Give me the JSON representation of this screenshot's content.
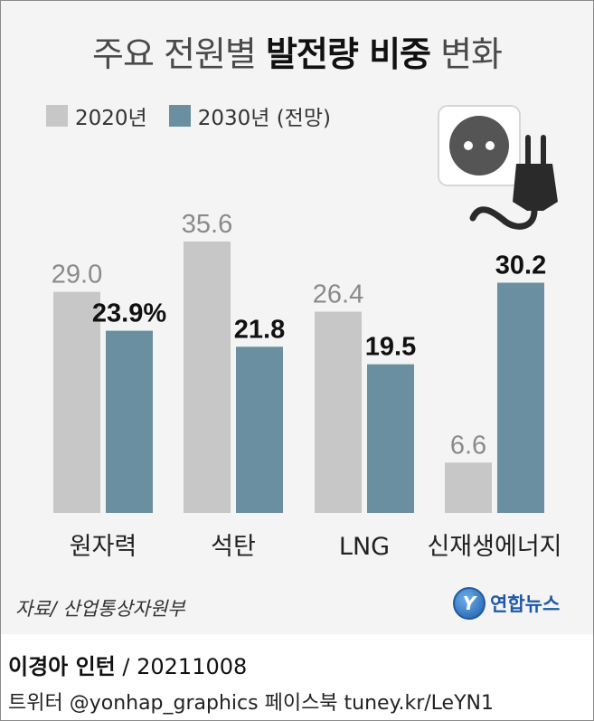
{
  "title": {
    "regular_a": "주요 전원별 ",
    "bold": "발전량 비중",
    "regular_b": " 변화"
  },
  "legend": [
    {
      "label": "2020년",
      "color": "#c7c7c7"
    },
    {
      "label": "2030년 (전망)",
      "color": "#6a8fa0"
    }
  ],
  "source": "자료/ 산업통상자원부",
  "logo": {
    "mark": "Y",
    "name": "연합뉴스"
  },
  "byline": {
    "author": "이경아 인턴",
    "date": " / 20211008"
  },
  "social": "트위터 @yonhap_graphics  페이스북 tuney.kr/LeYN1",
  "icons": [
    "power-plug-icon",
    "power-outlet-icon"
  ],
  "colors": {
    "y2020": "#c7c7c7",
    "y2030": "#6a8fa0",
    "label2020": "#8a8a8a",
    "label2030": "#111111"
  },
  "chart_data": {
    "type": "bar",
    "categories": [
      "원자력",
      "석탄",
      "LNG",
      "신재생에너지"
    ],
    "series": [
      {
        "name": "2020년",
        "values": [
          29.0,
          35.6,
          26.4,
          6.6
        ],
        "labels": [
          "29.0",
          "35.6",
          "26.4",
          "6.6"
        ]
      },
      {
        "name": "2030년 (전망)",
        "values": [
          23.9,
          21.8,
          19.5,
          30.2
        ],
        "labels": [
          "23.9%",
          "21.8",
          "19.5",
          "30.2"
        ]
      }
    ],
    "ylim": [
      0,
      35.6
    ],
    "grid": false,
    "legend_position": "top-left"
  }
}
